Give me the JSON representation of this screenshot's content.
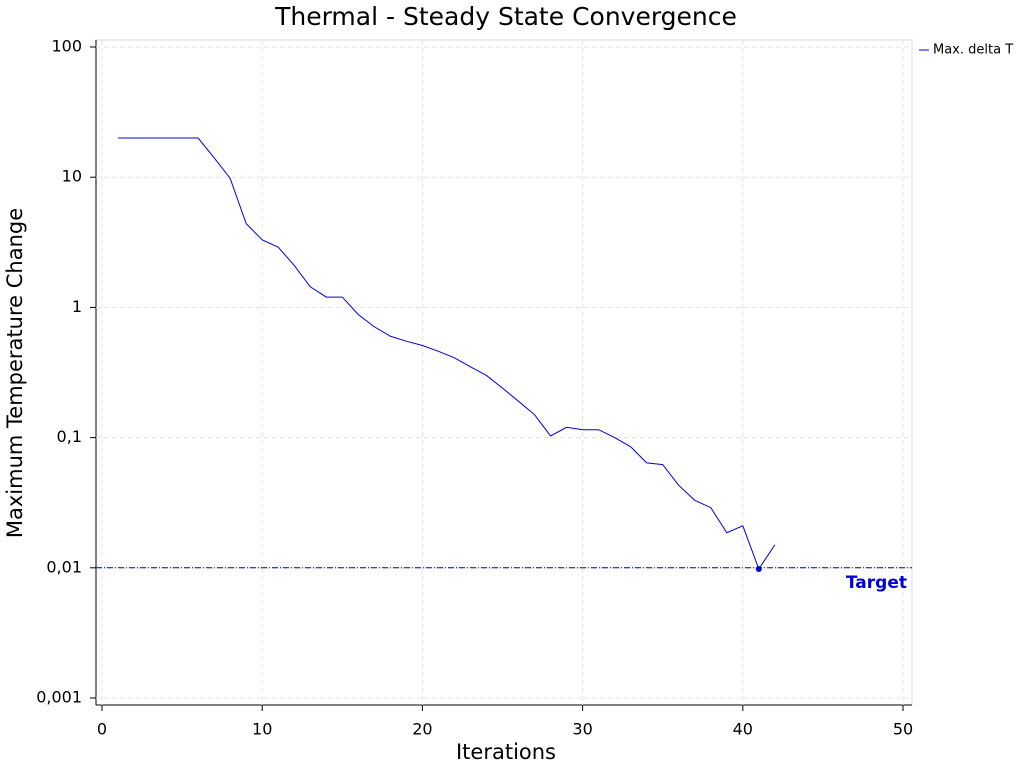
{
  "chart_data": {
    "type": "line",
    "title": "Thermal - Steady State Convergence",
    "x_label": "Iterations",
    "y_label": "Maximum Temperature Change",
    "x": [
      1,
      2,
      3,
      4,
      5,
      6,
      7,
      8,
      9,
      10,
      11,
      12,
      13,
      14,
      15,
      16,
      17,
      18,
      19,
      20,
      21,
      22,
      23,
      24,
      25,
      26,
      27,
      28,
      29,
      30,
      31,
      32,
      33,
      34,
      35,
      36,
      37,
      38,
      39,
      40,
      41,
      42
    ],
    "series": [
      {
        "name": "Max. delta T",
        "color": "#0000dd",
        "values": [
          20,
          20,
          20,
          20,
          20,
          20,
          14.1,
          9.8,
          4.4,
          3.3,
          2.9,
          2.1,
          1.44,
          1.2,
          1.2,
          0.88,
          0.71,
          0.6,
          0.55,
          0.51,
          0.46,
          0.41,
          0.35,
          0.3,
          0.24,
          0.19,
          0.15,
          0.103,
          0.12,
          0.115,
          0.115,
          0.1,
          0.085,
          0.064,
          0.062,
          0.043,
          0.033,
          0.029,
          0.0186,
          0.021,
          0.0098,
          0.015
        ]
      }
    ],
    "target": 0.01,
    "target_label": "Target",
    "xlim": [
      0,
      50
    ],
    "xticks": [
      0,
      10,
      20,
      30,
      40,
      50
    ],
    "ylim": [
      0.001,
      100
    ],
    "y_scale": "log",
    "yticks": [
      {
        "value": 0.001,
        "label": "0,001"
      },
      {
        "value": 0.01,
        "label": "0,01"
      },
      {
        "value": 0.1,
        "label": "0,1"
      },
      1,
      10,
      100
    ],
    "grid": true,
    "legend_position": "top-right"
  }
}
